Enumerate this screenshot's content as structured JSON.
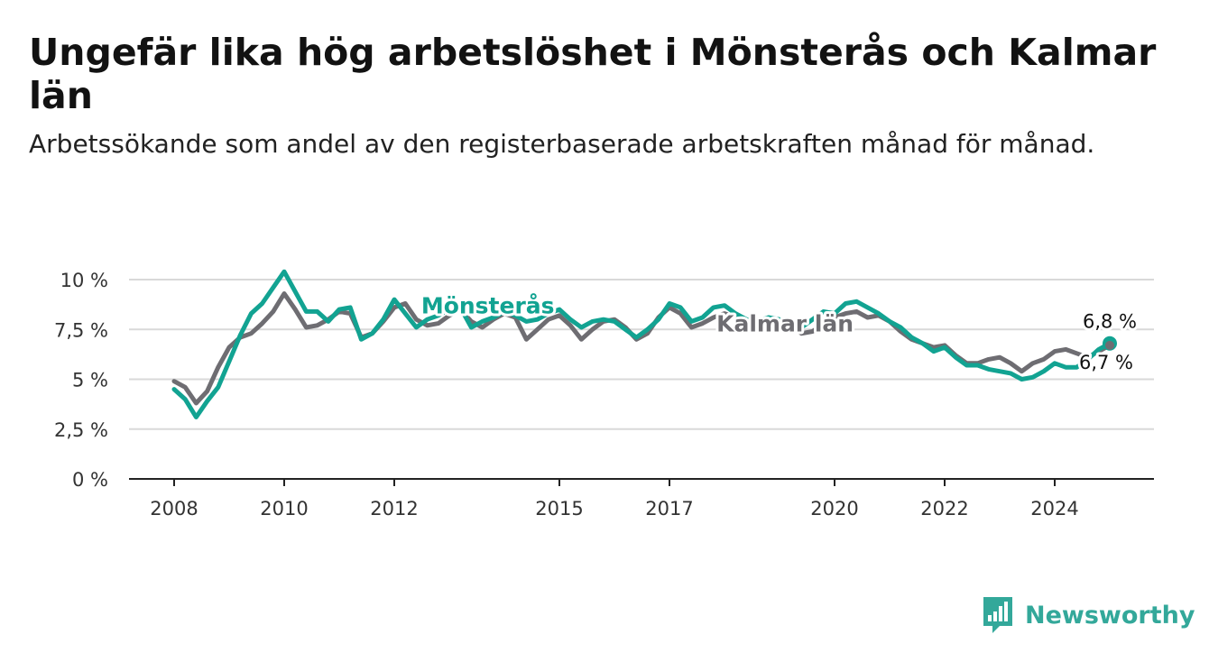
{
  "header": {
    "title": "Ungefär lika hög arbetslöshet i Mönsterås och Kalmar län",
    "subtitle": "Arbetssökande som andel av den registerbaserade arbetskraften månad för månad."
  },
  "brand": {
    "name": "Newsworthy",
    "icon": "newsworthy-logo-icon",
    "color": "#33a89a"
  },
  "chart_data": {
    "type": "line",
    "title": "Ungefär lika hög arbetslöshet i Mönsterås och Kalmar län",
    "subtitle": "Arbetssökande som andel av den registerbaserade arbetskraften månad för månad.",
    "xlabel": "",
    "ylabel": "",
    "xlim": [
      2007.2,
      2025.8
    ],
    "ylim": [
      0,
      10
    ],
    "x_ticks": [
      2008,
      2010,
      2012,
      2015,
      2017,
      2020,
      2022,
      2024
    ],
    "x_tick_labels": [
      "2008",
      "2010",
      "2012",
      "2015",
      "2017",
      "2020",
      "2022",
      "2024"
    ],
    "y_ticks": [
      0,
      2.5,
      5,
      7.5,
      10
    ],
    "y_tick_labels": [
      "0 %",
      "2,5 %",
      "5 %",
      "7,5 %",
      "10 %"
    ],
    "grid": "horizontal",
    "series": [
      {
        "name": "Kalmar län",
        "color": "#6e6d72",
        "end_label": "6,7 %",
        "x": [
          2008.0,
          2008.2,
          2008.4,
          2008.6,
          2008.8,
          2009.0,
          2009.2,
          2009.4,
          2009.6,
          2009.8,
          2010.0,
          2010.2,
          2010.4,
          2010.6,
          2010.8,
          2011.0,
          2011.2,
          2011.4,
          2011.6,
          2011.8,
          2012.0,
          2012.2,
          2012.4,
          2012.6,
          2012.8,
          2013.0,
          2013.2,
          2013.4,
          2013.6,
          2013.8,
          2014.0,
          2014.2,
          2014.4,
          2014.6,
          2014.8,
          2015.0,
          2015.2,
          2015.4,
          2015.6,
          2015.8,
          2016.0,
          2016.2,
          2016.4,
          2016.6,
          2016.8,
          2017.0,
          2017.2,
          2017.4,
          2017.6,
          2017.8,
          2018.0,
          2018.2,
          2018.4,
          2018.6,
          2018.8,
          2019.0,
          2019.2,
          2019.4,
          2019.6,
          2019.8,
          2020.0,
          2020.2,
          2020.4,
          2020.6,
          2020.8,
          2021.0,
          2021.2,
          2021.4,
          2021.6,
          2021.8,
          2022.0,
          2022.2,
          2022.4,
          2022.6,
          2022.8,
          2023.0,
          2023.2,
          2023.4,
          2023.6,
          2023.8,
          2024.0,
          2024.2,
          2024.4,
          2024.6,
          2024.8,
          2025.0
        ],
        "y": [
          4.9,
          4.6,
          3.8,
          4.4,
          5.6,
          6.6,
          7.1,
          7.3,
          7.8,
          8.4,
          9.3,
          8.5,
          7.6,
          7.7,
          8.0,
          8.4,
          8.3,
          7.1,
          7.3,
          7.9,
          8.6,
          8.8,
          8.0,
          7.7,
          7.8,
          8.2,
          8.5,
          7.9,
          7.6,
          8.0,
          8.3,
          8.1,
          7.0,
          7.5,
          8.0,
          8.2,
          7.7,
          7.0,
          7.5,
          7.9,
          8.0,
          7.6,
          7.0,
          7.3,
          8.1,
          8.6,
          8.3,
          7.6,
          7.8,
          8.1,
          8.3,
          8.1,
          7.7,
          7.6,
          7.9,
          7.9,
          7.7,
          7.3,
          7.4,
          7.8,
          8.1,
          8.3,
          8.4,
          8.1,
          8.2,
          7.9,
          7.4,
          7.0,
          6.8,
          6.6,
          6.7,
          6.2,
          5.8,
          5.8,
          6.0,
          6.1,
          5.8,
          5.4,
          5.8,
          6.0,
          6.4,
          6.5,
          6.3,
          6.1,
          6.4,
          6.7
        ]
      },
      {
        "name": "Mönsterås",
        "color": "#12a392",
        "end_label": "6,8 %",
        "x": [
          2008.0,
          2008.2,
          2008.4,
          2008.6,
          2008.8,
          2009.0,
          2009.2,
          2009.4,
          2009.6,
          2009.8,
          2010.0,
          2010.2,
          2010.4,
          2010.6,
          2010.8,
          2011.0,
          2011.2,
          2011.4,
          2011.6,
          2011.8,
          2012.0,
          2012.2,
          2012.4,
          2012.6,
          2012.8,
          2013.0,
          2013.2,
          2013.4,
          2013.6,
          2013.8,
          2014.0,
          2014.2,
          2014.4,
          2014.6,
          2014.8,
          2015.0,
          2015.2,
          2015.4,
          2015.6,
          2015.8,
          2016.0,
          2016.2,
          2016.4,
          2016.6,
          2016.8,
          2017.0,
          2017.2,
          2017.4,
          2017.6,
          2017.8,
          2018.0,
          2018.2,
          2018.4,
          2018.6,
          2018.8,
          2019.0,
          2019.2,
          2019.4,
          2019.6,
          2019.8,
          2020.0,
          2020.2,
          2020.4,
          2020.6,
          2020.8,
          2021.0,
          2021.2,
          2021.4,
          2021.6,
          2021.8,
          2022.0,
          2022.2,
          2022.4,
          2022.6,
          2022.8,
          2023.0,
          2023.2,
          2023.4,
          2023.6,
          2023.8,
          2024.0,
          2024.2,
          2024.4,
          2024.6,
          2024.8,
          2025.0
        ],
        "y": [
          4.5,
          4.0,
          3.1,
          3.9,
          4.6,
          5.9,
          7.2,
          8.3,
          8.8,
          9.6,
          10.4,
          9.4,
          8.4,
          8.4,
          7.9,
          8.5,
          8.6,
          7.0,
          7.3,
          8.0,
          9.0,
          8.3,
          7.6,
          8.0,
          8.2,
          8.5,
          8.6,
          7.6,
          7.9,
          8.1,
          8.4,
          8.2,
          7.9,
          8.0,
          8.3,
          8.5,
          8.0,
          7.6,
          7.9,
          8.0,
          7.9,
          7.5,
          7.1,
          7.5,
          8.0,
          8.8,
          8.6,
          7.9,
          8.1,
          8.6,
          8.7,
          8.3,
          8.0,
          7.9,
          8.1,
          8.0,
          7.8,
          7.6,
          8.0,
          8.4,
          8.3,
          8.8,
          8.9,
          8.6,
          8.3,
          7.9,
          7.6,
          7.1,
          6.8,
          6.4,
          6.6,
          6.1,
          5.7,
          5.7,
          5.5,
          5.4,
          5.3,
          5.0,
          5.1,
          5.4,
          5.8,
          5.6,
          5.6,
          6.0,
          6.5,
          6.8
        ]
      }
    ],
    "annotations": [
      {
        "text": "Mönsterås",
        "series": "Mönsterås",
        "x": 2013.7,
        "y": 8.3
      },
      {
        "text": "Kalmar län",
        "series": "Kalmar län",
        "x": 2019.1,
        "y": 7.4
      }
    ]
  }
}
